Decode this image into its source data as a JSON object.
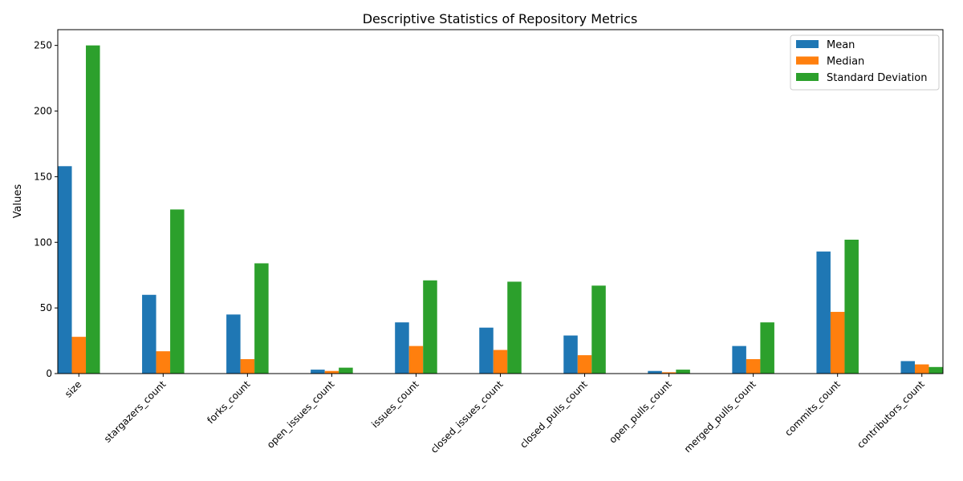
{
  "chart_data": {
    "type": "bar",
    "title": "Descriptive Statistics of Repository Metrics",
    "xlabel": "",
    "ylabel": "Values",
    "ylim": [
      0,
      262
    ],
    "yticks": [
      0,
      50,
      100,
      150,
      200,
      250
    ],
    "grid": false,
    "legend_position": "top-right",
    "categories": [
      "size",
      "stargazers_count",
      "forks_count",
      "open_issues_count",
      "issues_count",
      "closed_issues_count",
      "closed_pulls_count",
      "open_pulls_count",
      "merged_pulls_count",
      "commits_count",
      "contributors_count"
    ],
    "series": [
      {
        "name": "Mean",
        "color": "#1f77b4",
        "values": [
          158,
          60,
          45,
          3,
          39,
          35,
          29,
          2,
          21,
          93,
          9.5
        ]
      },
      {
        "name": "Median",
        "color": "#ff7f0e",
        "values": [
          28,
          17,
          11,
          2,
          21,
          18,
          14,
          1,
          11,
          47,
          7
        ]
      },
      {
        "name": "Standard Deviation",
        "color": "#2ca02c",
        "values": [
          250,
          125,
          84,
          4.5,
          71,
          70,
          67,
          3,
          39,
          102,
          5
        ]
      }
    ]
  }
}
